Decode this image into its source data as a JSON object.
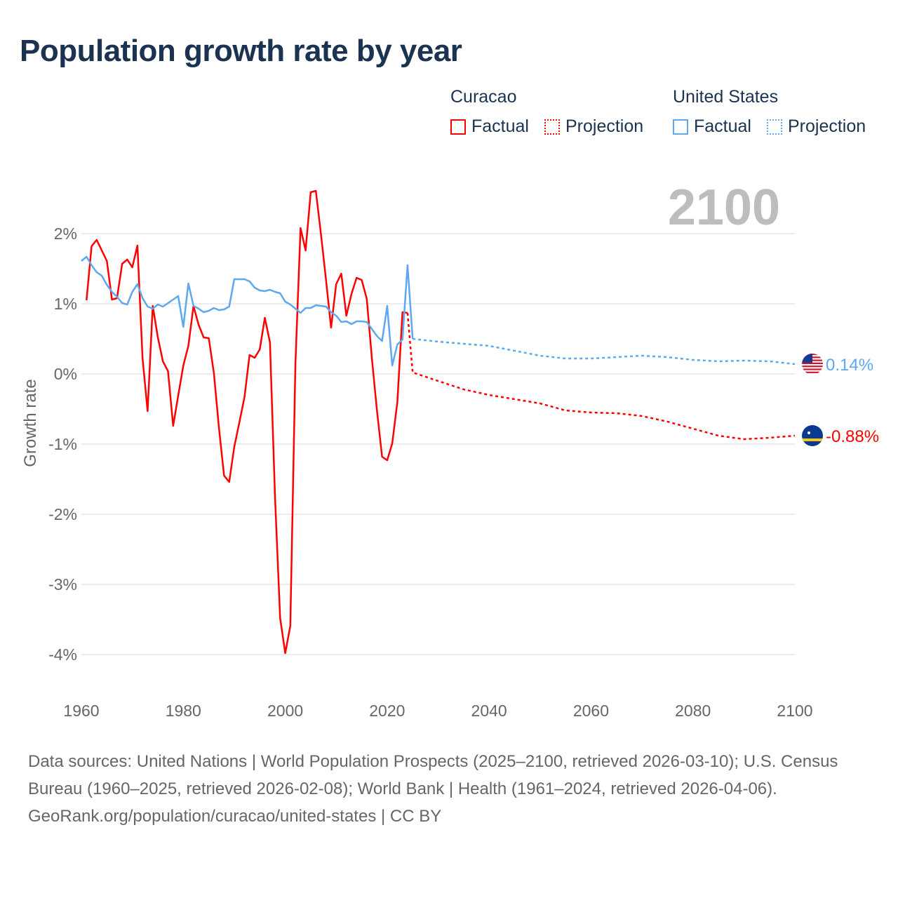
{
  "title": "Population growth rate by year",
  "legend": {
    "groups": [
      {
        "name": "Curacao",
        "color": "#ff0000",
        "factual": "Factual",
        "projection": "Projection"
      },
      {
        "name": "United States",
        "color": "#5ea8ef",
        "factual": "Factual",
        "projection": "Projection"
      }
    ]
  },
  "year_label": "2100",
  "footer": {
    "sources": "Data sources: United Nations | World Population Prospects (2025–2100, retrieved 2026-03-10); U.S. Census Bureau (1960–2025, retrieved 2026-02-08); World Bank | Health (1961–2024, retrieved 2026-04-06).",
    "credit": "GeoRank.org/population/curacao/united-states | CC BY"
  },
  "chart_data": {
    "type": "line",
    "title": "Population growth rate by year",
    "xlabel": "",
    "ylabel": "Growth rate",
    "xlim": [
      1960,
      2100
    ],
    "ylim": [
      -4,
      2
    ],
    "xticks": [
      1960,
      1980,
      2000,
      2020,
      2040,
      2060,
      2080,
      2100
    ],
    "xtick_labels": [
      "1960",
      "1980",
      "2000",
      "2020",
      "2040",
      "2060",
      "2080",
      "2100"
    ],
    "yticks": [
      2,
      1,
      0,
      -1,
      -2,
      -3,
      -4
    ],
    "ytick_labels": [
      "2%",
      "1%",
      "0%",
      "-1%",
      "-2%",
      "-3%",
      "-4%"
    ],
    "grid": true,
    "legend_position": "top-right",
    "series": [
      {
        "name": "Curacao Factual",
        "color": "#ff0000",
        "dashed": false,
        "x": [
          1961,
          1962,
          1963,
          1964,
          1965,
          1966,
          1967,
          1968,
          1969,
          1970,
          1971,
          1972,
          1973,
          1974,
          1975,
          1976,
          1977,
          1978,
          1979,
          1980,
          1981,
          1982,
          1983,
          1984,
          1985,
          1986,
          1987,
          1988,
          1989,
          1990,
          1991,
          1992,
          1993,
          1994,
          1995,
          1996,
          1997,
          1998,
          1999,
          2000,
          2001,
          2002,
          2003,
          2004,
          2005,
          2006,
          2007,
          2008,
          2009,
          2010,
          2011,
          2012,
          2013,
          2014,
          2015,
          2016,
          2017,
          2018,
          2019,
          2020,
          2021,
          2022,
          2023,
          2024
        ],
        "y": [
          1.05,
          1.82,
          1.91,
          1.76,
          1.61,
          1.06,
          1.08,
          1.57,
          1.63,
          1.52,
          1.83,
          0.22,
          -0.53,
          0.97,
          0.52,
          0.18,
          0.04,
          -0.74,
          -0.31,
          0.12,
          0.4,
          0.97,
          0.7,
          0.52,
          0.51,
          0.01,
          -0.77,
          -1.45,
          -1.54,
          -1.04,
          -0.69,
          -0.33,
          0.27,
          0.23,
          0.35,
          0.8,
          0.45,
          -1.75,
          -3.48,
          -3.98,
          -3.59,
          0.15,
          2.08,
          1.76,
          2.59,
          2.61,
          2.0,
          1.34,
          0.66,
          1.28,
          1.43,
          0.83,
          1.14,
          1.37,
          1.34,
          1.07,
          0.22,
          -0.52,
          -1.18,
          -1.23,
          -0.99,
          -0.4,
          0.88,
          0.87
        ]
      },
      {
        "name": "Curacao Projection",
        "color": "#ff0000",
        "dashed": true,
        "x": [
          2024,
          2025,
          2030,
          2035,
          2040,
          2045,
          2050,
          2055,
          2060,
          2065,
          2070,
          2075,
          2080,
          2085,
          2090,
          2095,
          2100
        ],
        "y": [
          0.87,
          0.02,
          -0.1,
          -0.22,
          -0.3,
          -0.36,
          -0.42,
          -0.52,
          -0.55,
          -0.56,
          -0.6,
          -0.68,
          -0.78,
          -0.88,
          -0.93,
          -0.91,
          -0.88
        ]
      },
      {
        "name": "United States Factual",
        "color": "#5ea8ef",
        "dashed": false,
        "x": [
          1960,
          1961,
          1962,
          1963,
          1964,
          1965,
          1966,
          1967,
          1968,
          1969,
          1970,
          1971,
          1972,
          1973,
          1974,
          1975,
          1976,
          1977,
          1978,
          1979,
          1980,
          1981,
          1982,
          1983,
          1984,
          1985,
          1986,
          1987,
          1988,
          1989,
          1990,
          1991,
          1992,
          1993,
          1994,
          1995,
          1996,
          1997,
          1998,
          1999,
          2000,
          2001,
          2002,
          2003,
          2004,
          2005,
          2006,
          2007,
          2008,
          2009,
          2010,
          2011,
          2012,
          2013,
          2014,
          2015,
          2016,
          2017,
          2018,
          2019,
          2020,
          2021,
          2022,
          2023,
          2024,
          2025
        ],
        "y": [
          1.61,
          1.67,
          1.55,
          1.45,
          1.4,
          1.27,
          1.17,
          1.1,
          1.01,
          0.99,
          1.17,
          1.28,
          1.08,
          0.96,
          0.93,
          0.99,
          0.96,
          1.01,
          1.06,
          1.11,
          0.67,
          1.29,
          0.97,
          0.93,
          0.88,
          0.9,
          0.94,
          0.91,
          0.92,
          0.96,
          1.35,
          1.35,
          1.35,
          1.32,
          1.23,
          1.19,
          1.18,
          1.2,
          1.17,
          1.15,
          1.03,
          0.99,
          0.93,
          0.87,
          0.94,
          0.94,
          0.98,
          0.97,
          0.96,
          0.88,
          0.83,
          0.74,
          0.75,
          0.71,
          0.75,
          0.75,
          0.74,
          0.64,
          0.54,
          0.47,
          0.97,
          0.12,
          0.42,
          0.49,
          1.55,
          0.5
        ]
      },
      {
        "name": "United States Projection",
        "color": "#5ea8ef",
        "dashed": true,
        "x": [
          2025,
          2030,
          2035,
          2040,
          2045,
          2050,
          2055,
          2060,
          2065,
          2070,
          2075,
          2080,
          2085,
          2090,
          2095,
          2100
        ],
        "y": [
          0.5,
          0.46,
          0.43,
          0.4,
          0.33,
          0.26,
          0.22,
          0.22,
          0.24,
          0.26,
          0.24,
          0.2,
          0.18,
          0.19,
          0.18,
          0.14
        ]
      }
    ],
    "end_labels": [
      {
        "country": "United States",
        "value": 0.14,
        "text": "0.14%",
        "color": "#5ea8ef"
      },
      {
        "country": "Curacao",
        "value": -0.88,
        "text": "-0.88%",
        "color": "#ff0000"
      }
    ]
  }
}
